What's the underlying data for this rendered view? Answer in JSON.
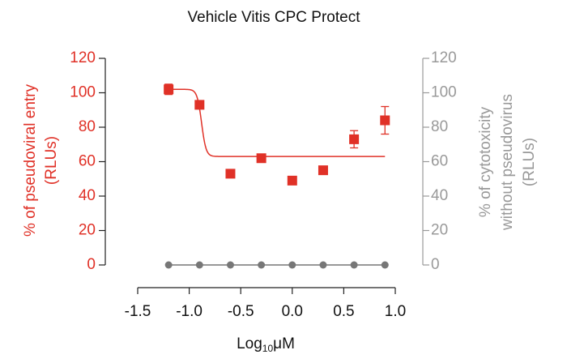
{
  "chart_data": {
    "type": "scatter",
    "title": "Vehicle Vitis CPC Protect",
    "y_label": [
      "% of pseudoviral entry",
      "(RLUs)"
    ],
    "y2_label": [
      "% of cytotoxicity",
      "without pseudovirus",
      "(RLUs)"
    ],
    "x_label": [
      "Log",
      "10",
      "μM"
    ],
    "x": [
      -1.2,
      -0.9,
      -0.6,
      -0.3,
      0.0,
      0.3,
      0.6,
      0.9
    ],
    "series": [
      {
        "color": "#e03127",
        "values": [
          102,
          93,
          53,
          62,
          49,
          55,
          73,
          84
        ],
        "errors": [
          3,
          2,
          0,
          1,
          1,
          1,
          5,
          8
        ],
        "fit": {
          "top": 102,
          "bottom": 63,
          "logec50": -0.88,
          "hill": 20
        }
      },
      {
        "color": "#777777",
        "axis": "y2",
        "values": [
          0,
          0,
          0,
          0,
          0,
          0,
          0,
          0
        ]
      }
    ],
    "xlim": [
      -1.5,
      1.0
    ],
    "xticks": [
      {
        "value": -1.5,
        "label": "-1.5"
      },
      {
        "value": -1.0,
        "label": "-1.0"
      },
      {
        "value": -0.5,
        "label": "-0.5"
      },
      {
        "value": 0.0,
        "label": "0.0"
      },
      {
        "value": 0.5,
        "label": "0.5"
      },
      {
        "value": 1.0,
        "label": "1.0"
      }
    ],
    "ylim": [
      0,
      120
    ],
    "yticks": [
      0,
      20,
      40,
      60,
      80,
      100,
      120
    ],
    "y2lim": [
      0,
      120
    ],
    "y2ticks": [
      0,
      20,
      40,
      60,
      80,
      100,
      120
    ],
    "y_color": "#e03127",
    "y2_color": "#999999"
  }
}
